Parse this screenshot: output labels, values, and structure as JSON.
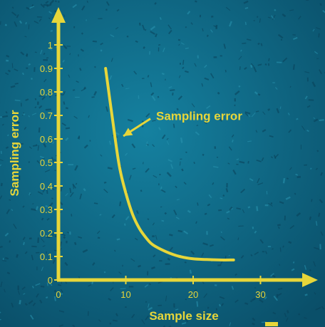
{
  "colors": {
    "background": "#0e6f8c",
    "background_dark": "#0a4f69",
    "speckle": "#0a3f57",
    "accent": "#e7d63a"
  },
  "chart_data": {
    "type": "line",
    "xlabel": "Sample size",
    "ylabel": "Sampling error",
    "xlim": [
      0,
      36
    ],
    "ylim": [
      0,
      1.05
    ],
    "x_ticks": [
      "0",
      "10",
      "20",
      "30"
    ],
    "y_ticks": [
      "0",
      "0.1",
      "0.2",
      "0.3",
      "0.4",
      "0.5",
      "0.6",
      "0.7",
      "0.8",
      "0.9",
      "1"
    ],
    "series": [
      {
        "values_x": [
          7,
          8,
          9,
          10,
          11,
          12,
          13,
          14,
          16,
          18,
          20,
          22,
          24,
          26
        ],
        "values_y": [
          0.9,
          0.69,
          0.49,
          0.37,
          0.28,
          0.22,
          0.18,
          0.15,
          0.12,
          0.1,
          0.09,
          0.087,
          0.085,
          0.085
        ]
      }
    ],
    "annotations": [
      {
        "text": "Sampling error",
        "x": 14.5,
        "y": 0.68,
        "arrow_to_x": 9,
        "arrow_to_y": 0.6
      }
    ]
  }
}
